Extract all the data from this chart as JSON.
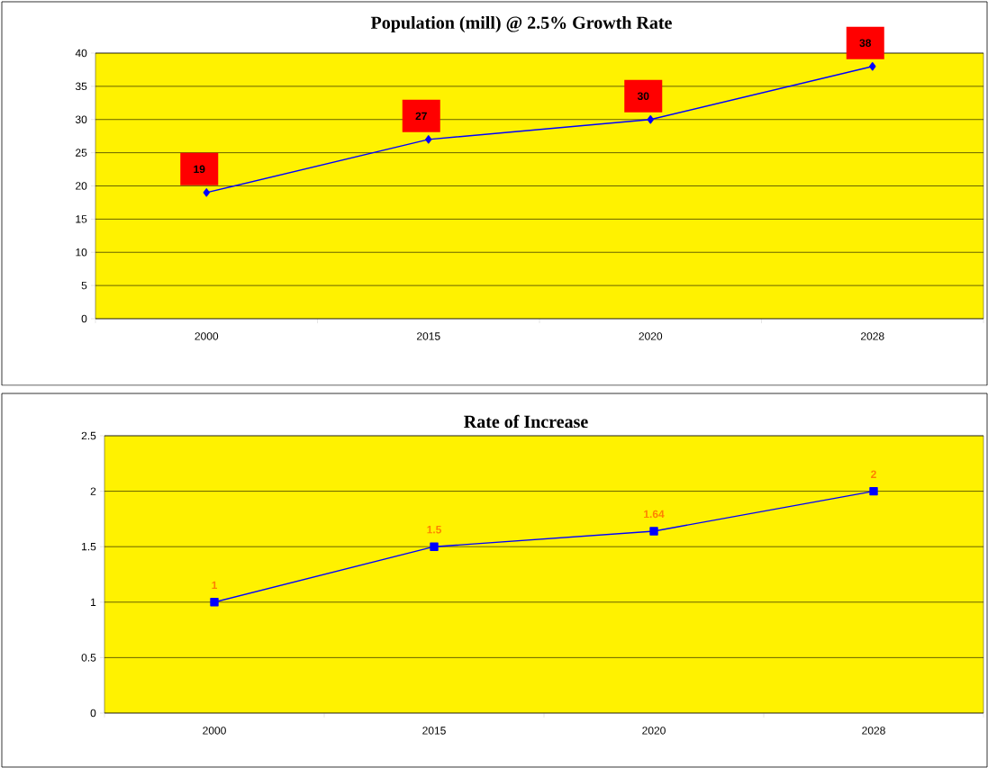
{
  "chart_data": [
    {
      "type": "line",
      "title": "Population (mill) @ 2.5% Growth Rate",
      "categories": [
        "2000",
        "2015",
        "2020",
        "2028"
      ],
      "series": [
        {
          "color": "#0000ff",
          "values": [
            19,
            27,
            30,
            38
          ]
        }
      ],
      "ylim": [
        0,
        40
      ],
      "yticks": [
        0,
        5,
        10,
        15,
        20,
        25,
        30,
        35,
        40
      ],
      "grid": "y",
      "data_labels": true,
      "marker": "diamond",
      "line_style": "solid"
    },
    {
      "type": "line",
      "title": "Rate of Increase",
      "categories": [
        "2000",
        "2015",
        "2020",
        "2028"
      ],
      "series": [
        {
          "color": "#0000ff",
          "values": [
            1,
            1.5,
            1.64,
            2
          ]
        }
      ],
      "ylim": [
        0,
        2.5
      ],
      "yticks": [
        0,
        0.5,
        1,
        1.5,
        2,
        2.5
      ],
      "grid": "y",
      "data_labels": true,
      "marker": "square",
      "line_style": "solid"
    }
  ]
}
